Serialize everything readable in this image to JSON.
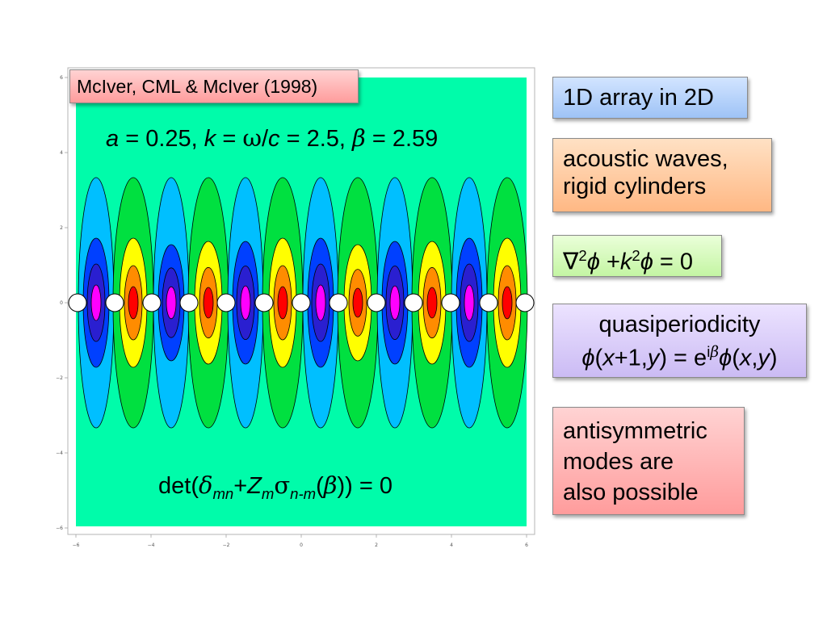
{
  "citation": "McIver, CML & McIver (1998)",
  "params": {
    "a_sym": "a",
    "a_val": "= 0.25,",
    "k_sym": "k",
    "k_eq": "=",
    "omega": "ω",
    "slash": "/",
    "c_sym": "c",
    "k_val": "= 2.5,",
    "beta_sym": "β",
    "beta_val": "= 2.59"
  },
  "det_eq": {
    "prefix": "det(",
    "delta": "δ",
    "delta_sub": "mn",
    "plus": "+",
    "Z": "Z",
    "Z_sub": "m",
    "sigma": "σ",
    "sigma_sub": "n-m",
    "paren_open": "(",
    "beta": "β",
    "suffix": ")) = 0"
  },
  "plot": {
    "x_ticks": [
      "−6",
      "−4",
      "−2",
      "0",
      "2",
      "4",
      "6"
    ],
    "y_ticks": [
      "6",
      "4",
      "2",
      "0",
      "−2",
      "−4",
      "−6"
    ],
    "background_color": "#00fcaa",
    "contour_colors": [
      "#ff0000",
      "#ff8c00",
      "#ffff00",
      "#00e040",
      "#00bfff",
      "#0040ff",
      "#ff00ff"
    ]
  },
  "notes": {
    "array": "1D array in 2D",
    "acoustic_line1": "acoustic waves,",
    "acoustic_line2": "rigid cylinders",
    "helmholtz": {
      "nabla": "∇",
      "sq": "2",
      "phi": "ϕ",
      "plus": "+",
      "k": "k",
      "k_sq": "2",
      "phi2": "ϕ",
      "eq": "= 0"
    },
    "quasi_title": "quasiperiodicity",
    "quasi_eq": {
      "phi": "ϕ",
      "open": "(",
      "x": "x",
      "plus1": "+1,",
      "y": "y",
      "close_eq": ") = e",
      "exp_i": "i",
      "exp_beta": "β",
      "phi2": "ϕ",
      "open2": "(",
      "x2": "x",
      "comma": ",",
      "y2": "y",
      "close2": ")"
    },
    "anti_line1": "antisymmetric",
    "anti_line2": "modes are",
    "anti_line3": "also possible"
  }
}
